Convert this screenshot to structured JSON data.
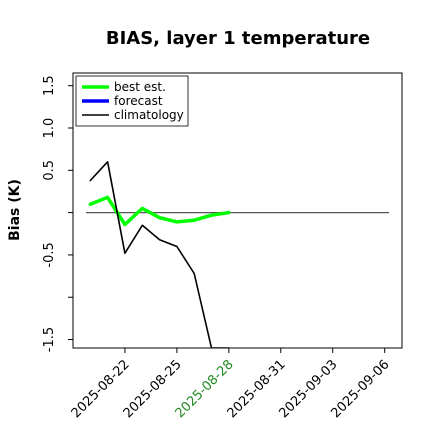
{
  "chart_data": {
    "type": "line",
    "title": "BIAS, layer 1 temperature",
    "xlabel": "",
    "ylabel": "Bias (K)",
    "x_date_start": "2025-08-19",
    "xlim": [
      "2025-08-19",
      "2025-09-07"
    ],
    "ylim": [
      -1.6,
      1.65
    ],
    "yticks": [
      -1.5,
      -1.0,
      -0.5,
      0.0,
      0.5,
      1.0,
      1.5
    ],
    "ytick_labels": [
      "-1.5",
      "",
      "-0.5",
      "",
      "0.5",
      "1.0",
      "1.5"
    ],
    "xticks": [
      "2025-08-22",
      "2025-08-25",
      "2025-08-28",
      "2025-08-31",
      "2025-09-03",
      "2025-09-06"
    ],
    "highlight_xtick": "2025-08-28",
    "highlight_color": "#228B22",
    "reference_line": 0.0,
    "legend": {
      "placement": "top-left"
    },
    "series": [
      {
        "name": "best est.",
        "color": "#00ff00",
        "x": [
          "2025-08-20",
          "2025-08-21",
          "2025-08-22",
          "2025-08-23",
          "2025-08-24",
          "2025-08-25",
          "2025-08-26",
          "2025-08-27",
          "2025-08-28"
        ],
        "y": [
          0.1,
          0.18,
          -0.14,
          0.05,
          -0.06,
          -0.11,
          -0.09,
          -0.03,
          0.0
        ]
      },
      {
        "name": "forecast",
        "color": "#0000ff",
        "x": [],
        "y": []
      },
      {
        "name": "climatology",
        "color": "#000000",
        "x": [
          "2025-08-20",
          "2025-08-21",
          "2025-08-22",
          "2025-08-23",
          "2025-08-24",
          "2025-08-25",
          "2025-08-26",
          "2025-08-27",
          "2025-08-28"
        ],
        "y": [
          0.38,
          0.6,
          -0.48,
          -0.15,
          -0.32,
          -0.4,
          -0.72,
          -1.6,
          -1.6
        ]
      }
    ]
  }
}
